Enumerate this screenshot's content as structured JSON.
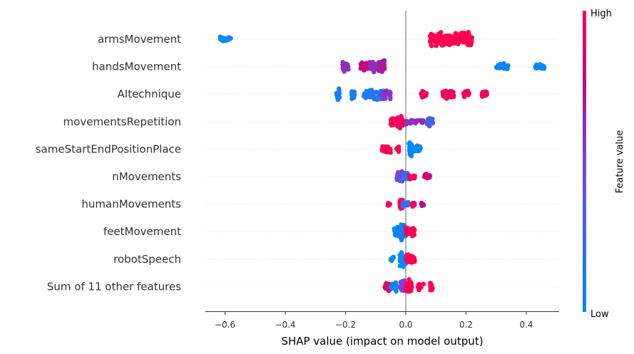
{
  "chart_data": {
    "type": "scatter",
    "subtype": "shap-beeswarm",
    "title": "",
    "xlabel": "SHAP value (impact on model output)",
    "xlim": [
      -0.66,
      0.51
    ],
    "xticks": [
      -0.6,
      -0.4,
      -0.2,
      0.0,
      0.2,
      0.4
    ],
    "xtick_labels": [
      "−0.6",
      "−0.4",
      "−0.2",
      "0.0",
      "0.2",
      "0.4"
    ],
    "colorbar": {
      "label": "Feature value",
      "high_label": "High",
      "low_label": "Low",
      "low_color": "#008bfb",
      "high_color": "#ff0052"
    },
    "features": [
      {
        "name": "armsMovement",
        "clusters": [
          {
            "x": [
              -0.62,
              -0.58
            ],
            "value": 0.0,
            "n": 40,
            "spread": 0.35
          },
          {
            "x": [
              0.08,
              0.22
            ],
            "value": 1.0,
            "n": 170,
            "spread": 1.0
          }
        ]
      },
      {
        "name": "handsMovement",
        "clusters": [
          {
            "x": [
              -0.21,
              -0.19
            ],
            "value": 0.6,
            "n": 25,
            "spread": 0.6
          },
          {
            "x": [
              -0.15,
              -0.12
            ],
            "value": 0.8,
            "n": 40,
            "spread": 0.8
          },
          {
            "x": [
              -0.12,
              -0.08
            ],
            "value": 0.6,
            "n": 35,
            "spread": 0.7
          },
          {
            "x": [
              -0.09,
              -0.07
            ],
            "value": 0.7,
            "n": 35,
            "spread": 0.9
          },
          {
            "x": [
              0.3,
              0.34
            ],
            "value": 0.05,
            "n": 45,
            "spread": 0.45
          },
          {
            "x": [
              0.43,
              0.46
            ],
            "value": 0.0,
            "n": 30,
            "spread": 0.35
          }
        ]
      },
      {
        "name": "AItechnique",
        "clusters": [
          {
            "x": [
              -0.23,
              -0.22
            ],
            "value": 0.1,
            "n": 18,
            "spread": 0.7
          },
          {
            "x": [
              -0.18,
              -0.17
            ],
            "value": 0.1,
            "n": 18,
            "spread": 0.7
          },
          {
            "x": [
              -0.14,
              -0.12
            ],
            "value": 0.1,
            "n": 25,
            "spread": 0.8
          },
          {
            "x": [
              -0.12,
              -0.1
            ],
            "value": 0.15,
            "n": 20,
            "spread": 0.7
          },
          {
            "x": [
              -0.1,
              -0.07
            ],
            "value": 0.15,
            "n": 25,
            "spread": 0.8
          },
          {
            "x": [
              -0.08,
              -0.05
            ],
            "value": 0.55,
            "n": 25,
            "spread": 0.7
          },
          {
            "x": [
              0.05,
              0.07
            ],
            "value": 0.95,
            "n": 20,
            "spread": 0.5
          },
          {
            "x": [
              0.12,
              0.16
            ],
            "value": 0.95,
            "n": 35,
            "spread": 0.7
          },
          {
            "x": [
              0.19,
              0.21
            ],
            "value": 0.95,
            "n": 20,
            "spread": 0.5
          },
          {
            "x": [
              0.25,
              0.27
            ],
            "value": 0.95,
            "n": 20,
            "spread": 0.5
          }
        ]
      },
      {
        "name": "movementsRepetition",
        "clusters": [
          {
            "x": [
              -0.05,
              -0.04
            ],
            "value": 1.0,
            "n": 18,
            "spread": 0.55
          },
          {
            "x": [
              -0.03,
              -0.01
            ],
            "value": 0.95,
            "n": 45,
            "spread": 0.8
          },
          {
            "x": [
              0.0,
              0.06
            ],
            "value": 0.6,
            "n": 30,
            "spread": 0.35
          },
          {
            "x": [
              0.07,
              0.09
            ],
            "value": 0.3,
            "n": 25,
            "spread": 0.6
          }
        ]
      },
      {
        "name": "sameStartEndPositionPlace",
        "clusters": [
          {
            "x": [
              -0.08,
              -0.05
            ],
            "value": 1.0,
            "n": 30,
            "spread": 0.45
          },
          {
            "x": [
              -0.03,
              -0.02
            ],
            "value": 1.0,
            "n": 14,
            "spread": 0.35
          },
          {
            "x": [
              0.01,
              0.02
            ],
            "value": 0.0,
            "n": 35,
            "spread": 0.9
          },
          {
            "x": [
              0.02,
              0.05
            ],
            "value": 0.0,
            "n": 45,
            "spread": 0.45
          }
        ]
      },
      {
        "name": "nMovements",
        "clusters": [
          {
            "x": [
              -0.03,
              -0.01
            ],
            "value": 0.45,
            "n": 50,
            "spread": 0.85
          },
          {
            "x": [
              -0.01,
              0.01
            ],
            "value": 0.2,
            "n": 30,
            "spread": 0.6
          },
          {
            "x": [
              0.01,
              0.03
            ],
            "value": 0.95,
            "n": 15,
            "spread": 0.45
          },
          {
            "x": [
              0.06,
              0.08
            ],
            "value": 0.85,
            "n": 18,
            "spread": 0.5
          }
        ]
      },
      {
        "name": "humanMovements",
        "clusters": [
          {
            "x": [
              -0.06,
              -0.05
            ],
            "value": 1.0,
            "n": 6,
            "spread": 0.25
          },
          {
            "x": [
              -0.02,
              -0.01
            ],
            "value": 1.0,
            "n": 40,
            "spread": 0.9
          },
          {
            "x": [
              -0.01,
              0.01
            ],
            "value": 0.2,
            "n": 25,
            "spread": 0.4
          },
          {
            "x": [
              0.02,
              0.03
            ],
            "value": 0.95,
            "n": 10,
            "spread": 0.35
          },
          {
            "x": [
              0.05,
              0.06
            ],
            "value": 0.75,
            "n": 10,
            "spread": 0.3
          }
        ]
      },
      {
        "name": "feetMovement",
        "clusters": [
          {
            "x": [
              -0.04,
              -0.02
            ],
            "value": 0.05,
            "n": 30,
            "spread": 0.7
          },
          {
            "x": [
              -0.02,
              0.0
            ],
            "value": 0.05,
            "n": 50,
            "spread": 1.0
          },
          {
            "x": [
              0.0,
              0.03
            ],
            "value": 1.0,
            "n": 40,
            "spread": 0.6
          }
        ]
      },
      {
        "name": "robotSpeech",
        "clusters": [
          {
            "x": [
              -0.05,
              -0.04
            ],
            "value": 0.0,
            "n": 10,
            "spread": 0.35
          },
          {
            "x": [
              -0.02,
              0.0
            ],
            "value": 0.0,
            "n": 45,
            "spread": 1.0
          },
          {
            "x": [
              0.0,
              0.03
            ],
            "value": 1.0,
            "n": 45,
            "spread": 0.7
          }
        ]
      },
      {
        "name": "Sum of 11 other features",
        "clusters": [
          {
            "x": [
              -0.07,
              -0.05
            ],
            "value": 0.9,
            "n": 25,
            "spread": 0.6
          },
          {
            "x": [
              -0.05,
              -0.03
            ],
            "value": 0.05,
            "n": 20,
            "spread": 0.6
          },
          {
            "x": [
              -0.02,
              0.0
            ],
            "value": 0.5,
            "n": 25,
            "spread": 0.9
          },
          {
            "x": [
              0.0,
              0.02
            ],
            "value": 1.0,
            "n": 35,
            "spread": 1.0
          },
          {
            "x": [
              0.04,
              0.06
            ],
            "value": 1.0,
            "n": 15,
            "spread": 0.6
          },
          {
            "x": [
              0.08,
              0.09
            ],
            "value": 1.0,
            "n": 12,
            "spread": 0.55
          }
        ]
      }
    ]
  }
}
